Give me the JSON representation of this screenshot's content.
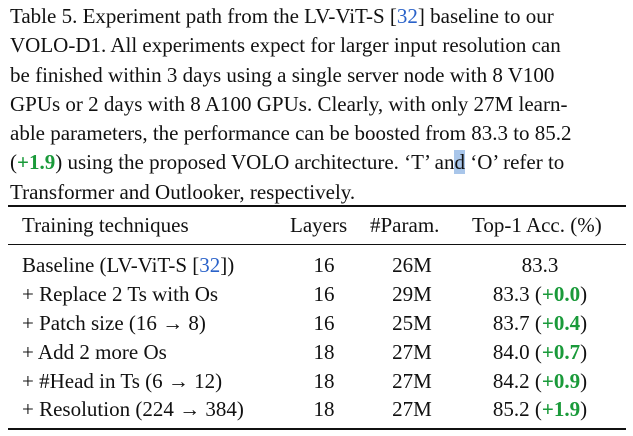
{
  "caption": {
    "lines": [
      {
        "pre": "Table 5. Experiment path from the LV-ViT-S [",
        "cite": "32",
        "post": "] baseline to our"
      },
      {
        "text": "VOLO-D1. All experiments expect for larger input resolution can"
      },
      {
        "text": "be finished within 3 days using a single server node with 8 V100"
      },
      {
        "text": "GPUs or 2 days with 8 A100 GPUs. Clearly, with only 27M learn-"
      },
      {
        "text": "able parameters, the performance can be boosted from 83.3 to 85.2"
      },
      {
        "pre": "(",
        "delta": "+1.9",
        "mid": ") using the proposed VOLO architecture. ‘T’ an",
        "sel": "d",
        "post": " ‘O’ refer to"
      },
      {
        "text": "Transformer and Outlooker, respectively."
      }
    ]
  },
  "table": {
    "headers": {
      "technique": "Training techniques",
      "layers": "Layers",
      "params": "#Param.",
      "acc": "Top-1 Acc. (%)"
    },
    "rows": [
      {
        "technique_pre": "Baseline (LV-ViT-S [",
        "cite": "32",
        "technique_post": "])",
        "layers": "16",
        "params": "26M",
        "acc": "83.3",
        "delta": ""
      },
      {
        "technique_pre": "+ Replace 2 Ts with Os",
        "layers": "16",
        "params": "29M",
        "acc": "83.3 (",
        "delta": "+0.0",
        "acc_post": ")"
      },
      {
        "technique_pre": "+ Patch size (16 → 8)",
        "layers": "16",
        "params": "25M",
        "acc": "83.7 (",
        "delta": "+0.4",
        "acc_post": ")"
      },
      {
        "technique_pre": "+ Add 2 more Os",
        "layers": "18",
        "params": "27M",
        "acc": "84.0 (",
        "delta": "+0.7",
        "acc_post": ")"
      },
      {
        "technique_pre": "+ #Head in Ts (6 → 12)",
        "layers": "18",
        "params": "27M",
        "acc": "84.2 (",
        "delta": "+0.9",
        "acc_post": ")"
      },
      {
        "technique_pre": "+ Resolution (224 → 384)",
        "layers": "18",
        "params": "27M",
        "acc": "85.2 (",
        "delta": "+1.9",
        "acc_post": ")"
      }
    ]
  },
  "colors": {
    "citation": "#2a62c9",
    "improvement": "#1a9a3a",
    "selection": "#a9c6ea"
  }
}
